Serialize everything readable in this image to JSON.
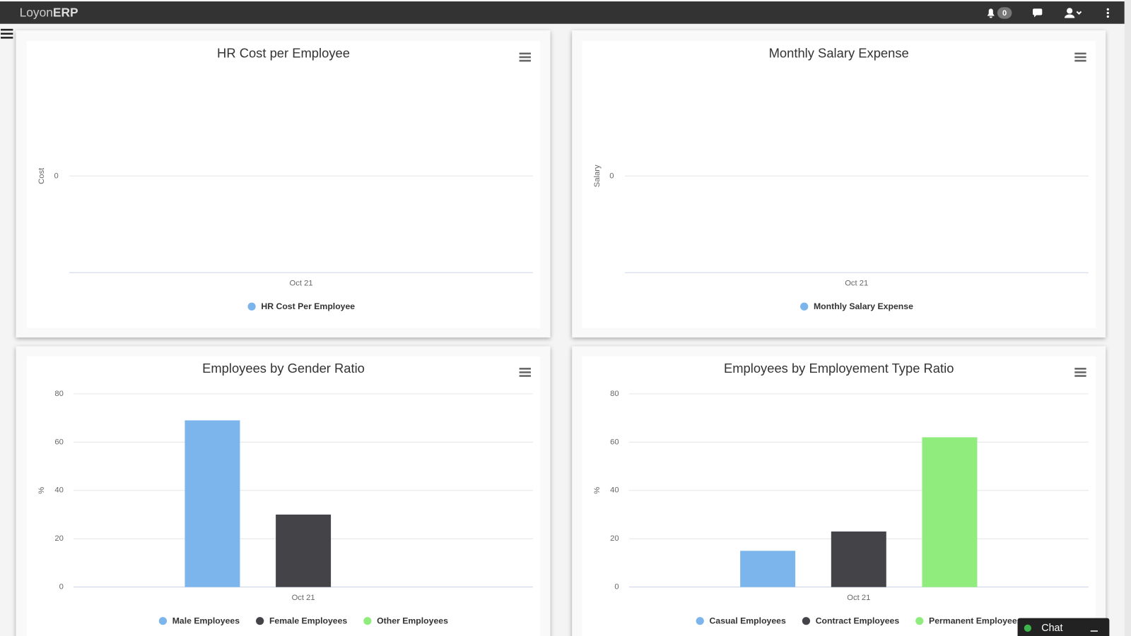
{
  "header": {
    "logo_light": "Loyon",
    "logo_bold": "ERP",
    "notification_count": 0
  },
  "chat": {
    "label": "Chat"
  },
  "chart_data": [
    {
      "type": "bar",
      "title": "HR Cost per Employee",
      "y_label": "Cost",
      "categories": [
        "Oct 21"
      ],
      "series": [
        {
          "name": "HR Cost Per Employee",
          "color": "#7cb5ec",
          "values": [
            null
          ]
        }
      ],
      "ylim": [
        -1,
        1
      ],
      "yticks": [
        0
      ],
      "grid": true
    },
    {
      "type": "bar",
      "title": "Monthly Salary Expense",
      "y_label": "Salary",
      "categories": [
        "Oct 21"
      ],
      "series": [
        {
          "name": "Monthly Salary Expense",
          "color": "#7cb5ec",
          "values": [
            null
          ]
        }
      ],
      "ylim": [
        -1,
        1
      ],
      "yticks": [
        0
      ],
      "grid": true
    },
    {
      "type": "bar",
      "title": "Employees by Gender Ratio",
      "y_label": "%",
      "categories": [
        "Oct 21"
      ],
      "series": [
        {
          "name": "Male Employees",
          "color": "#7cb5ec",
          "values": [
            69
          ]
        },
        {
          "name": "Female Employees",
          "color": "#434348",
          "values": [
            30
          ]
        },
        {
          "name": "Other Employees",
          "color": "#90ed7d",
          "values": [
            0
          ]
        }
      ],
      "ylim": [
        0,
        80
      ],
      "yticks": [
        0,
        20,
        40,
        60,
        80
      ],
      "grid": true
    },
    {
      "type": "bar",
      "title": "Employees by Employement Type Ratio",
      "y_label": "%",
      "categories": [
        "Oct 21"
      ],
      "series": [
        {
          "name": "Casual Employees",
          "color": "#7cb5ec",
          "values": [
            15
          ]
        },
        {
          "name": "Contract Employees",
          "color": "#434348",
          "values": [
            23
          ]
        },
        {
          "name": "Permanent Employees",
          "color": "#90ed7d",
          "values": [
            62
          ]
        }
      ],
      "ylim": [
        0,
        80
      ],
      "yticks": [
        0,
        20,
        40,
        60,
        80
      ],
      "grid": true
    }
  ]
}
